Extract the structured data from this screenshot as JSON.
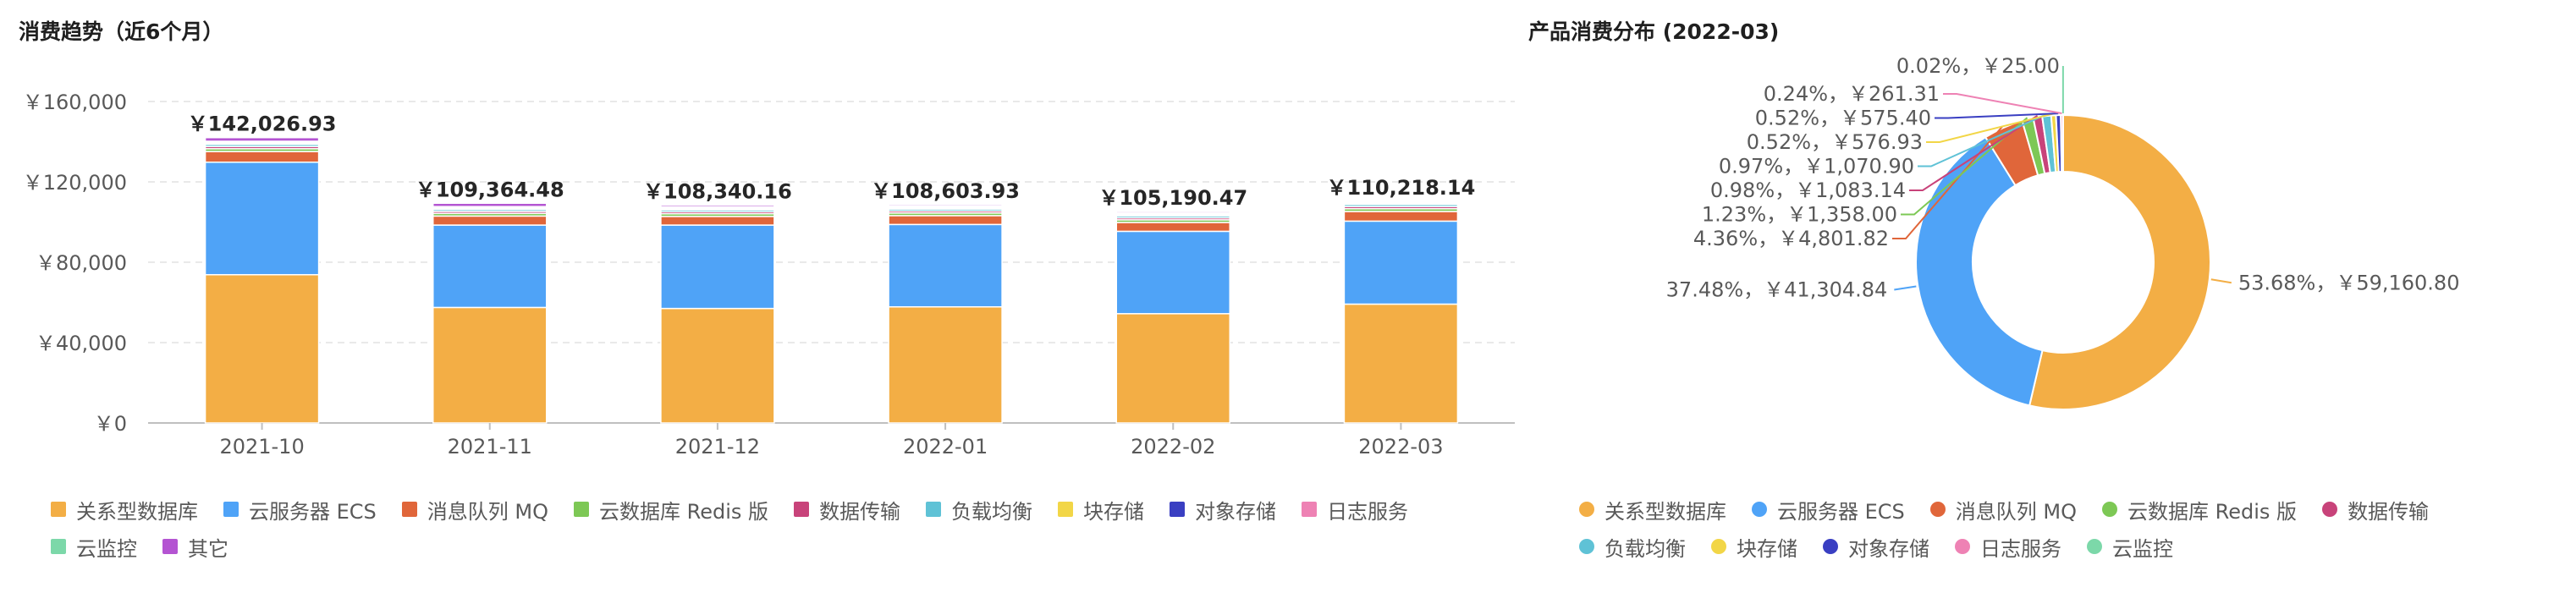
{
  "left_panel": {
    "title": "消费趋势（近6个月）"
  },
  "right_panel": {
    "title": "产品消费分布 (2022-03)"
  },
  "products": [
    {
      "name": "关系型数据库",
      "color": "#F3AE45"
    },
    {
      "name": "云服务器 ECS",
      "color": "#4FA3F7"
    },
    {
      "name": "消息队列 MQ",
      "color": "#E0663A"
    },
    {
      "name": "云数据库 Redis 版",
      "color": "#7DC855"
    },
    {
      "name": "数据传输",
      "color": "#C8437A"
    },
    {
      "name": "负载均衡",
      "color": "#5FC2D6"
    },
    {
      "name": "块存储",
      "color": "#F2D647"
    },
    {
      "name": "对象存储",
      "color": "#3A3FC2"
    },
    {
      "name": "日志服务",
      "color": "#EE82B4"
    },
    {
      "name": "云监控",
      "color": "#7CD8A9"
    },
    {
      "name": "其它",
      "color": "#B454D2"
    }
  ],
  "chart_data": [
    {
      "type": "bar",
      "stacked": true,
      "title": "消费趋势（近6个月）",
      "categories": [
        "2021-10",
        "2021-11",
        "2021-12",
        "2022-01",
        "2022-02",
        "2022-03"
      ],
      "totals": [
        142026.93,
        109364.48,
        108340.16,
        108603.93,
        105190.47,
        110218.14
      ],
      "total_labels": [
        "￥142,026.93",
        "￥109,364.48",
        "￥108,340.16",
        "￥108,603.93",
        "￥105,190.47",
        "￥110,218.14"
      ],
      "yticks": [
        0,
        40000,
        80000,
        120000,
        160000
      ],
      "ytick_labels": [
        "￥0",
        "￥40,000",
        "￥80,000",
        "￥120,000",
        "￥160,000"
      ],
      "ylim": [
        0,
        160000
      ],
      "grid": true,
      "legend_position": "bottom",
      "series": [
        {
          "name": "关系型数据库",
          "values": [
            73800,
            57500,
            57000,
            57800,
            54400,
            59160.8
          ]
        },
        {
          "name": "云服务器 ECS",
          "values": [
            56000,
            41000,
            41500,
            41000,
            41000,
            41304.84
          ]
        },
        {
          "name": "消息队列 MQ",
          "values": [
            5300,
            4500,
            4300,
            4400,
            4400,
            4801.82
          ]
        },
        {
          "name": "云数据库 Redis 版",
          "values": [
            1400,
            1300,
            1300,
            1300,
            1300,
            1358
          ]
        },
        {
          "name": "数据传输",
          "values": [
            1100,
            1000,
            1000,
            1000,
            1000,
            1083.14
          ]
        },
        {
          "name": "负载均衡",
          "values": [
            1100,
            1000,
            1000,
            1000,
            1000,
            1070.9
          ]
        },
        {
          "name": "块存储",
          "values": [
            600,
            560,
            560,
            560,
            560,
            576.93
          ]
        },
        {
          "name": "对象存储",
          "values": [
            600,
            560,
            560,
            560,
            560,
            575.4
          ]
        },
        {
          "name": "日志服务",
          "values": [
            300,
            260,
            260,
            260,
            260,
            261.31
          ]
        },
        {
          "name": "云监控",
          "values": [
            26,
            25,
            25,
            25,
            25,
            25
          ]
        },
        {
          "name": "其它",
          "values": [
            1800,
            1659,
            835,
            699,
            685,
            0
          ]
        }
      ]
    },
    {
      "type": "pie",
      "donut": true,
      "title": "产品消费分布 (2022-03)",
      "legend_position": "bottom",
      "slices": [
        {
          "name": "关系型数据库",
          "value": 59160.8,
          "label": "53.68%，￥59,160.80"
        },
        {
          "name": "云服务器 ECS",
          "value": 41304.84,
          "label": "37.48%，￥41,304.84"
        },
        {
          "name": "消息队列 MQ",
          "value": 4801.82,
          "label": "4.36%，￥4,801.82"
        },
        {
          "name": "云数据库 Redis 版",
          "value": 1358.0,
          "label": "1.23%，￥1,358.00"
        },
        {
          "name": "数据传输",
          "value": 1083.14,
          "label": "0.98%，￥1,083.14"
        },
        {
          "name": "负载均衡",
          "value": 1070.9,
          "label": "0.97%，￥1,070.90"
        },
        {
          "name": "块存储",
          "value": 576.93,
          "label": "0.52%，￥576.93"
        },
        {
          "name": "对象存储",
          "value": 575.4,
          "label": "0.52%，￥575.40"
        },
        {
          "name": "日志服务",
          "value": 261.31,
          "label": "0.24%，￥261.31"
        },
        {
          "name": "云监控",
          "value": 25.0,
          "label": "0.02%，￥25.00"
        }
      ]
    }
  ]
}
